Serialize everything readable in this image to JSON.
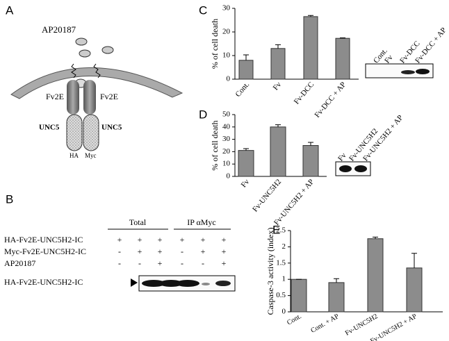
{
  "panels": [
    "A",
    "B",
    "C",
    "D",
    "E"
  ],
  "diagram": {
    "ligand": "AP20187",
    "receptor_left": "Fv2E",
    "receptor_right": "Fv2E",
    "domain_left": "UNC5",
    "domain_right": "UNC5",
    "tag_left": "HA",
    "tag_right": "Myc"
  },
  "blot_b": {
    "groups": [
      "Total",
      "IP αMyc"
    ],
    "rows": [
      {
        "label": "HA-Fv2E-UNC5H2-IC",
        "signs": [
          "+",
          "+",
          "+",
          "+",
          "+",
          "+"
        ]
      },
      {
        "label": "Myc-Fv2E-UNC5H2-IC",
        "signs": [
          "-",
          "+",
          "+",
          "-",
          "+",
          "+"
        ]
      },
      {
        "label": "AP20187",
        "signs": [
          "-",
          "-",
          "+",
          "-",
          "-",
          "+"
        ]
      }
    ],
    "band_label": "HA-Fv2E-UNC5H2-IC"
  },
  "blot_c_lanes": [
    "Cont.",
    "Fv",
    "Fv-DCC",
    "Fv-DCC + AP"
  ],
  "blot_d_lanes": [
    "Fv",
    "Fv-UNC5H2",
    "Fv-UNC5H2 + AP"
  ],
  "chart_data": [
    {
      "type": "bar",
      "y_label": "% of cell death",
      "categories": [
        "Cont.",
        "Fv",
        "Fv-DCC",
        "Fv-DCC + AP"
      ],
      "values": [
        8,
        13,
        26.5,
        17.3
      ],
      "errors": [
        2.3,
        1.6,
        0.5,
        0.2
      ],
      "color": "#8c8c8c",
      "ylim": [
        0,
        30
      ],
      "yticks": [
        0,
        10,
        20,
        30
      ]
    },
    {
      "type": "bar",
      "y_label": "% of cell death",
      "categories": [
        "Fv",
        "Fv-UNC5H2",
        "Fv-UNC5H2 + AP"
      ],
      "values": [
        21,
        40,
        25
      ],
      "errors": [
        1.5,
        1.8,
        2.5
      ],
      "color": "#8c8c8c",
      "ylim": [
        0,
        50
      ],
      "yticks": [
        0,
        10,
        20,
        30,
        40,
        50
      ]
    },
    {
      "type": "bar",
      "y_label": "Caspase-3 activity (index)",
      "categories": [
        "Cont.",
        "Cont. + AP",
        "Fv-UNC5H2",
        "Fv-UNC5H2 + AP"
      ],
      "values": [
        1.0,
        0.9,
        2.25,
        1.35
      ],
      "errors": [
        0,
        0.12,
        0.05,
        0.45
      ],
      "color": "#8c8c8c",
      "ylim": [
        0,
        2.5
      ],
      "yticks": [
        0,
        0.5,
        1,
        1.5,
        2,
        2.5
      ]
    }
  ]
}
